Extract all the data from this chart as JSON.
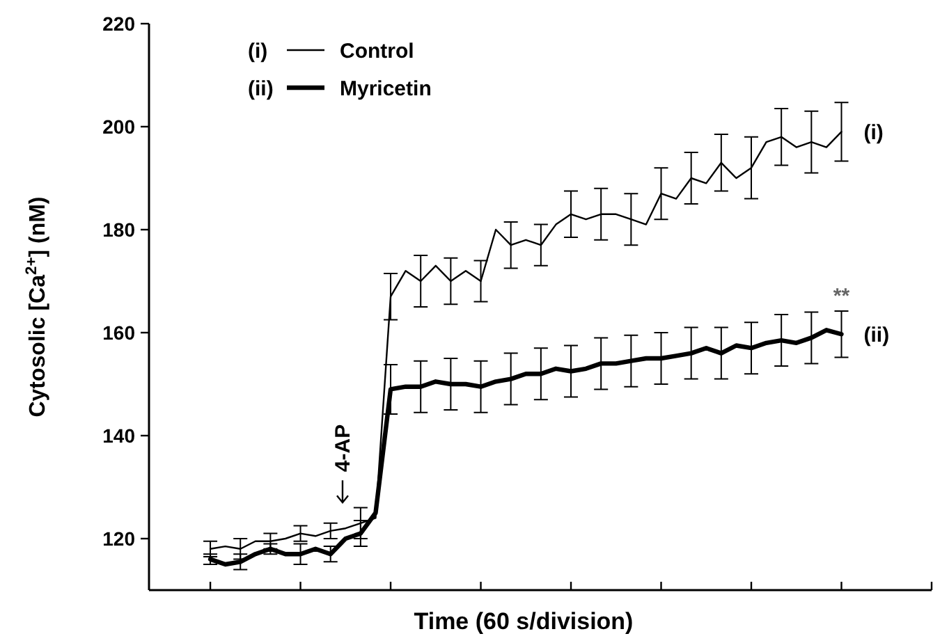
{
  "chart_data": {
    "type": "line",
    "xlabel": "Time (60 s/division)",
    "ylabel": "Cytosolic [Ca$^{2+}$] (nM)",
    "categories": [
      null,
      null,
      null,
      null,
      null,
      null,
      null,
      null,
      null,
      null,
      null,
      null,
      null,
      null,
      null,
      null,
      null,
      null,
      null,
      null,
      null,
      null,
      null,
      null,
      null,
      null,
      null,
      null,
      null,
      null,
      null,
      null,
      null,
      null,
      null,
      null,
      null,
      null,
      null,
      null,
      null,
      null,
      null
    ],
    "ylim": [
      110,
      220
    ],
    "yticks": [
      120,
      140,
      160,
      180,
      200,
      220
    ],
    "grid": false,
    "legend": "top left",
    "marker": "none",
    "line_style": "solid",
    "series": [
      {
        "name": "Control",
        "color": "#000000",
        "values": [
          118,
          118.5,
          118,
          119.5,
          119.5,
          120,
          121,
          120.5,
          121.5,
          122,
          123,
          124,
          167,
          172,
          170,
          173,
          170,
          172,
          170,
          180,
          177,
          178,
          177,
          181,
          183,
          182,
          183,
          183,
          182,
          181,
          187,
          186,
          190,
          189,
          193,
          190,
          192,
          197,
          198,
          196,
          197,
          196,
          199
        ],
        "errors": [
          1.5,
          null,
          2,
          null,
          1.5,
          null,
          1.5,
          null,
          1.5,
          null,
          3,
          null,
          4.5,
          null,
          5,
          null,
          4.5,
          null,
          4,
          null,
          4.5,
          null,
          4,
          null,
          4.5,
          null,
          5,
          null,
          5,
          null,
          5,
          null,
          5,
          null,
          5.5,
          null,
          6,
          null,
          5.5,
          null,
          6,
          null,
          5.7
        ]
      },
      {
        "name": "Myricetin",
        "color": "#000000",
        "values": [
          116,
          115,
          115.5,
          117,
          118,
          117,
          117,
          118,
          117,
          120,
          121,
          125,
          149,
          149.5,
          149.5,
          150.5,
          150,
          150,
          149.5,
          150.5,
          151,
          152,
          152,
          153,
          152.5,
          153,
          154,
          154,
          154.5,
          155,
          155,
          155.5,
          156,
          157,
          156,
          157.5,
          157,
          158,
          158.5,
          158,
          159,
          160.5,
          159.7
        ],
        "errors": [
          1,
          null,
          1.5,
          null,
          1,
          null,
          2,
          null,
          1.5,
          null,
          2.5,
          null,
          4.8,
          null,
          5,
          null,
          5,
          null,
          5,
          null,
          5,
          null,
          5,
          null,
          5,
          null,
          5,
          null,
          5,
          null,
          5,
          null,
          5,
          null,
          5,
          null,
          5,
          null,
          5,
          null,
          5,
          null,
          4.5
        ]
      }
    ],
    "annotations": [
      "(i)",
      "(ii)",
      "4-AP",
      "**",
      "(i)",
      "(ii)"
    ]
  }
}
